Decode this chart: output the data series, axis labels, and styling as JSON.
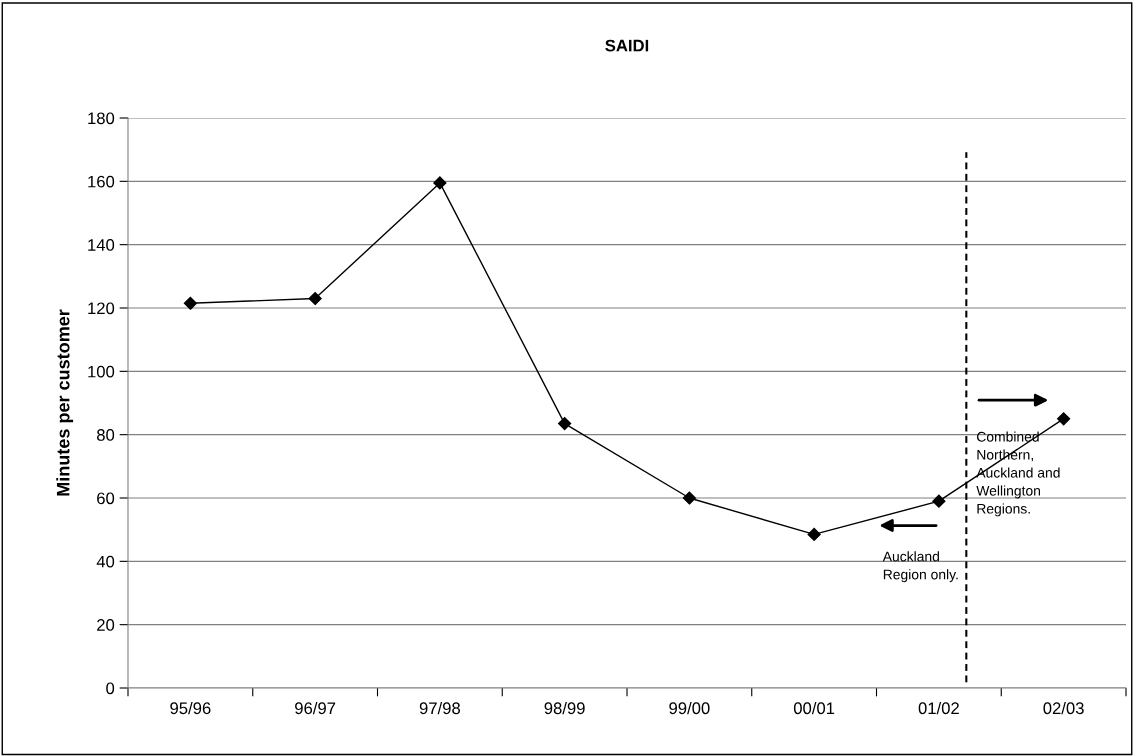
{
  "chart_data": {
    "type": "line",
    "title": "SAIDI",
    "ylabel": "Minutes per customer",
    "categories": [
      "95/96",
      "96/97",
      "97/98",
      "98/99",
      "99/00",
      "00/01",
      "01/02",
      "02/03"
    ],
    "series": [
      {
        "color": "#000000",
        "values": [
          121.5,
          123,
          159.5,
          83.5,
          60,
          48.5,
          59,
          85
        ]
      }
    ],
    "ylim": [
      0,
      180
    ],
    "yticks": [
      0,
      20,
      40,
      60,
      80,
      100,
      120,
      140,
      160,
      180
    ],
    "grid": "y",
    "marker": "diamond",
    "line_style": "solid",
    "annotations": [
      "Auckland\nRegion only.",
      "Combined\nNorthern,\nAuckland and\nWellington\nRegions."
    ]
  }
}
